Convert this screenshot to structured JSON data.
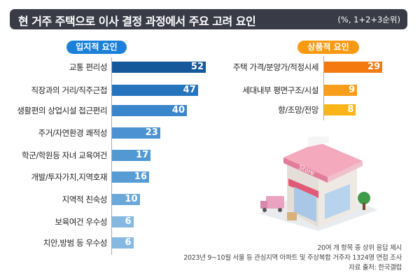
{
  "header": {
    "title": "현 거주 주택으로 이사 결정 과정에서 주요 고려 요인",
    "unit": "(%, 1+2+3순위)"
  },
  "chart_data": [
    {
      "type": "bar",
      "orientation": "horizontal",
      "title": "입지적 요인",
      "categories": [
        "교통 편리성",
        "직장과의 거리/직주근접",
        "생활편의 상업시설 접근편리",
        "주거/자연환경 쾌적성",
        "학군/학원등 자녀 교육여건",
        "개발/투자가치,지역호재",
        "지역적 친숙성",
        "보육여건 우수성",
        "치안,방범 등 우수성"
      ],
      "values": [
        52,
        47,
        40,
        23,
        17,
        16,
        10,
        6,
        6
      ],
      "colors": [
        "#15599b",
        "#2673bd",
        "#3a86cc",
        "#4a92d2",
        "#5299d4",
        "#579cd5",
        "#6aa8da",
        "#86b9e2",
        "#86b9e2"
      ],
      "accent": "#1b80d9"
    },
    {
      "type": "bar",
      "orientation": "horizontal",
      "title": "상품적 요인",
      "categories": [
        "주택 가격/분양가/적정시세",
        "세대내부 평면구조/시설",
        "향/조망/전망"
      ],
      "values": [
        29,
        9,
        8
      ],
      "colors": [
        "#f47a10",
        "#f99e1c",
        "#fbb519"
      ],
      "accent": "#f99a12"
    }
  ],
  "footnotes": [
    "20여 개 항목 중 상위 응답 제시",
    "2023년 9~10월 서울 등 관심지역 아파트 및 주상복합 거주자 1324명 면접 조사",
    "자료 출처: 한국갤럽"
  ],
  "illustration": {
    "sign_text": "Store"
  }
}
